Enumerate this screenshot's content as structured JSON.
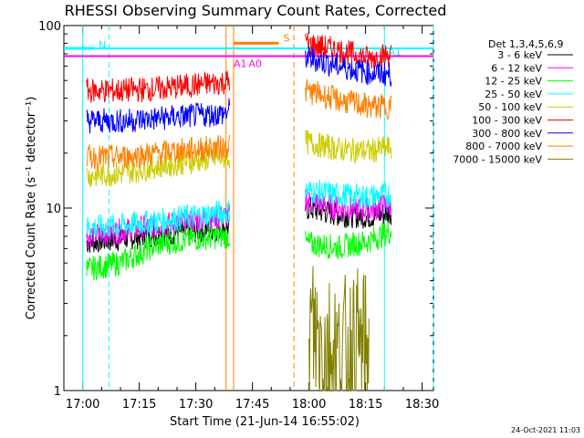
{
  "chart_data": {
    "type": "line",
    "title": "RHESSI Observing Summary Count Rates, Corrected",
    "xlabel": "Start Time (21-Jun-14 16:55:02)",
    "ylabel": "Corrected Count Rate (s⁻¹ detector⁻¹)",
    "yscale": "log",
    "ylim": [
      1,
      100
    ],
    "xlim": [
      "16:55",
      "18:33"
    ],
    "xticks": [
      "17:00",
      "17:15",
      "17:30",
      "17:45",
      "18:00",
      "18:15",
      "18:30"
    ],
    "yticks": [
      "1",
      "10",
      "100"
    ],
    "legend_title": "Det 1,3,4,5,6,9",
    "legend_position": "right",
    "data_gap": [
      "17:39",
      "17:59"
    ],
    "series": [
      {
        "name": "3 - 6 keV",
        "color": "#000000",
        "x": [
          "17:01",
          "17:10",
          "17:20",
          "17:29",
          "17:38",
          "17:59",
          "18:08",
          "18:16",
          "18:22"
        ],
        "values": [
          6.5,
          6.8,
          7.2,
          7.5,
          7.8,
          10.0,
          9.2,
          9.0,
          9.5
        ]
      },
      {
        "name": "6 - 12 keV",
        "color": "#ff00ff",
        "x": [
          "17:01",
          "17:10",
          "17:20",
          "17:29",
          "17:38",
          "17:59",
          "18:08",
          "18:16",
          "18:22"
        ],
        "values": [
          7.0,
          7.5,
          8.0,
          8.5,
          9.0,
          11.0,
          10.0,
          9.8,
          10.5
        ]
      },
      {
        "name": "12 - 25 keV",
        "color": "#00ff00",
        "x": [
          "17:01",
          "17:10",
          "17:20",
          "17:29",
          "17:38",
          "17:59",
          "18:08",
          "18:16",
          "18:22"
        ],
        "values": [
          4.6,
          5.0,
          6.3,
          6.8,
          7.0,
          6.4,
          6.1,
          6.6,
          7.5
        ]
      },
      {
        "name": "25 - 50 keV",
        "color": "#00ffff",
        "x": [
          "17:01",
          "17:10",
          "17:20",
          "17:29",
          "17:38",
          "17:59",
          "18:08",
          "18:16",
          "18:22"
        ],
        "values": [
          7.8,
          8.0,
          8.5,
          9.0,
          9.5,
          12.5,
          11.8,
          11.5,
          12.0
        ]
      },
      {
        "name": "50 - 100 keV",
        "color": "#cccc00",
        "x": [
          "17:01",
          "17:10",
          "17:20",
          "17:29",
          "17:38",
          "17:59",
          "18:08",
          "18:16",
          "18:22"
        ],
        "values": [
          15.0,
          15.5,
          17.0,
          18.0,
          19.0,
          23.0,
          21.0,
          20.5,
          21.5
        ]
      },
      {
        "name": "100 - 300 keV",
        "color": "#ff0000",
        "x": [
          "17:01",
          "17:10",
          "17:20",
          "17:29",
          "17:38",
          "17:59",
          "18:08",
          "18:16",
          "18:22"
        ],
        "values": [
          44,
          44,
          45,
          47,
          49,
          80,
          73,
          66,
          70
        ]
      },
      {
        "name": "300 - 800 keV",
        "color": "#0000ff",
        "x": [
          "17:01",
          "17:10",
          "17:20",
          "17:29",
          "17:38",
          "17:59",
          "18:08",
          "18:16",
          "18:22"
        ],
        "values": [
          30,
          30,
          31,
          32,
          33,
          67,
          60,
          55,
          54
        ]
      },
      {
        "name": "800 - 7000 keV",
        "color": "#ff8000",
        "x": [
          "17:01",
          "17:10",
          "17:20",
          "17:29",
          "17:38",
          "17:59",
          "18:08",
          "18:16",
          "18:22"
        ],
        "values": [
          19,
          19,
          20,
          21,
          21.5,
          44,
          39,
          36,
          36
        ]
      },
      {
        "name": "7000 - 15000 keV",
        "color": "#808000",
        "x": [
          "18:00",
          "18:04",
          "18:08",
          "18:12",
          "18:16"
        ],
        "values": [
          2.2,
          1.8,
          1.5,
          1.7,
          1.6
        ]
      }
    ],
    "annotations": [
      {
        "label": "N",
        "color": "#00ffff",
        "x_start": "16:55",
        "x_end": "17:03",
        "level": 75
      },
      {
        "label": "S",
        "color": "#ff8000",
        "x_start": "17:40",
        "x_end": "17:52",
        "level": 80
      },
      {
        "label": "A1",
        "color": "#ff00ff",
        "x": "17:40"
      },
      {
        "label": "A0",
        "color": "#ff00ff",
        "x": "17:44"
      },
      {
        "label": "A1",
        "color": "#00ffff",
        "x": "18:21"
      }
    ],
    "horizontal_lines": [
      {
        "color": "#ff00ff",
        "level": 68
      },
      {
        "color": "#00ffff",
        "level": 75
      }
    ],
    "vertical_lines": [
      {
        "x": "17:00",
        "color": "#00ffff",
        "style": "solid"
      },
      {
        "x": "17:07",
        "color": "#00ffff",
        "style": "dashed"
      },
      {
        "x": "17:38",
        "color": "#ff8000",
        "style": "solid"
      },
      {
        "x": "17:40",
        "color": "#ff8000",
        "style": "solid"
      },
      {
        "x": "17:56",
        "color": "#ff8000",
        "style": "dashed"
      },
      {
        "x": "18:20",
        "color": "#00ffff",
        "style": "solid"
      },
      {
        "x": "18:33",
        "color": "#00ffff",
        "style": "dashed"
      }
    ]
  },
  "timestamp": "24-Oct-2021 11:03"
}
